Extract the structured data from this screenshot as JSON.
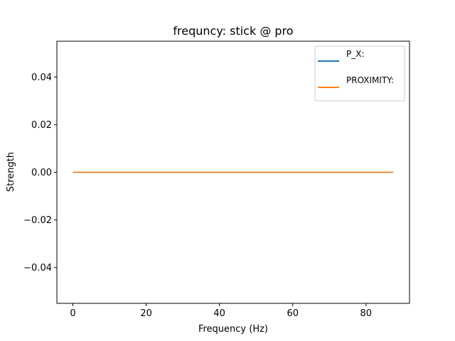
{
  "chart_data": {
    "type": "line",
    "title": "frequncy: stick @ pro",
    "xlabel": "Frequency (Hz)",
    "ylabel": "Strength",
    "xlim": [
      -4.375,
      91.875
    ],
    "ylim": [
      -0.055,
      0.055
    ],
    "xticks": [
      0,
      20,
      40,
      60,
      80
    ],
    "xtick_labels": [
      "0",
      "20",
      "40",
      "60",
      "80"
    ],
    "yticks": [
      0.04,
      0.02,
      0.0,
      -0.02,
      -0.04
    ],
    "ytick_labels": [
      "0.04",
      "0.02",
      "0.00",
      "−0.02",
      "−0.04"
    ],
    "grid": false,
    "legend_position": "top-right",
    "x": [
      0,
      87.5
    ],
    "series": [
      {
        "name": "P_X:",
        "color": "#1f77b4",
        "values": [
          0,
          0
        ]
      },
      {
        "name": "PROXIMITY:",
        "color": "#ff7f0e",
        "values": [
          0,
          0
        ]
      }
    ]
  }
}
